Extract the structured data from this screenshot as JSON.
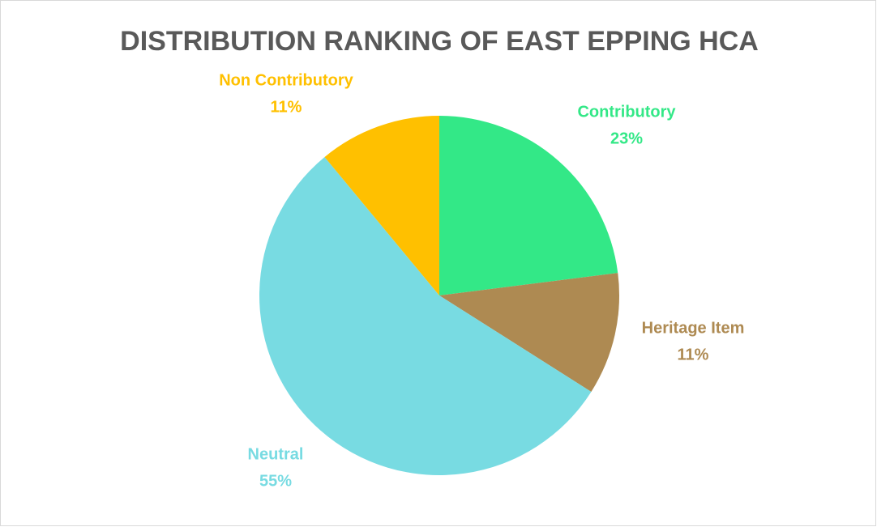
{
  "chart_data": {
    "type": "pie",
    "title": "DISTRIBUTION RANKING OF EAST EPPING HCA",
    "categories": [
      "Contributory",
      "Heritage Item",
      "Neutral",
      "Non Contributory"
    ],
    "values": [
      23,
      11,
      55,
      11
    ],
    "value_labels": [
      "23%",
      "11%",
      "55%",
      "11%"
    ],
    "colors": [
      "#33e887",
      "#ae8a52",
      "#78dbe2",
      "#ffc000"
    ]
  }
}
